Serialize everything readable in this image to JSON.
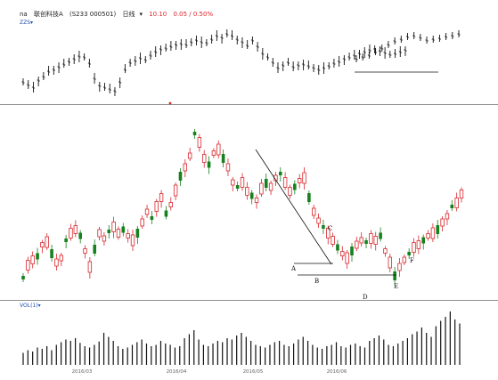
{
  "header": {
    "prefix": "na",
    "stock_name": "联创科技A",
    "stock_code": "(S233 000501)",
    "period": "日线",
    "price": "10.10",
    "change": "0.05 / 0.50%",
    "main_indicator": "ZZS",
    "volume_indicator": "VOL(1)"
  },
  "points": [
    "A",
    "B",
    "C",
    "D",
    "E",
    "F"
  ],
  "dates": [
    "2016/03",
    "2016/04",
    "2016/05",
    "2016/06"
  ],
  "colors": {
    "up": "#d8262c",
    "down": "#17801f",
    "line": "#111111"
  },
  "chart_data": {
    "type": "candlestick",
    "x": [
      "2016/03",
      "2016/04",
      "2016/05",
      "2016/06"
    ],
    "annotations": [
      "A",
      "B",
      "C",
      "D",
      "E",
      "F"
    ]
  }
}
